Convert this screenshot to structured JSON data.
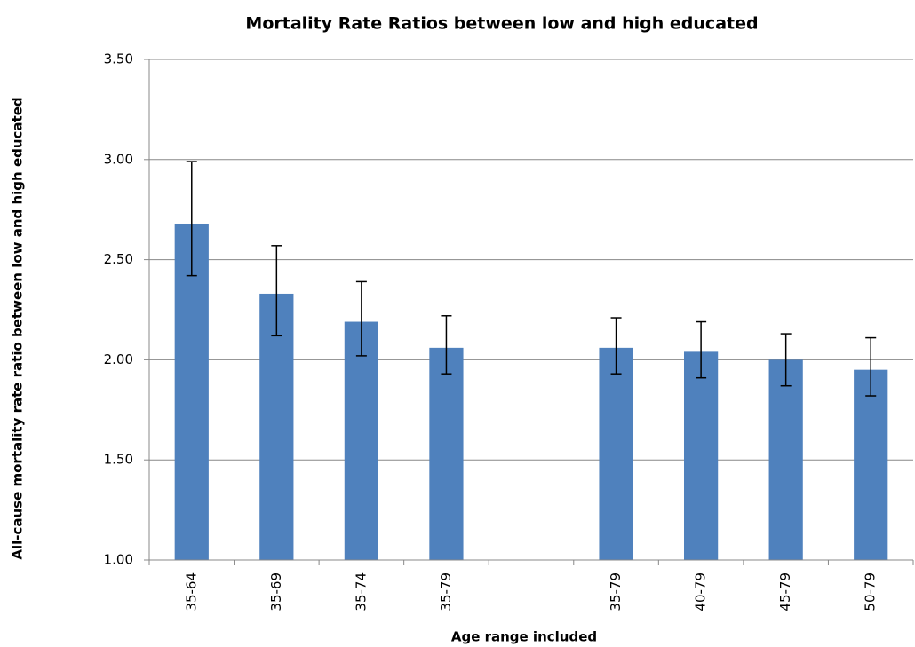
{
  "chart_data": {
    "type": "bar",
    "title": "Mortality Rate Ratios between low and high educated",
    "x_label": "Age range included",
    "y_label": "All-cause  mortality rate ratio between low and high educated",
    "categories": [
      "35-64",
      "35-69",
      "35-74",
      "35-79",
      null,
      "35-79",
      "40-79",
      "45-79",
      "50-79"
    ],
    "values": [
      2.68,
      2.33,
      2.19,
      2.06,
      null,
      2.06,
      2.04,
      2.0,
      1.95
    ],
    "error_lower": [
      2.42,
      2.12,
      2.02,
      1.93,
      null,
      1.93,
      1.91,
      1.87,
      1.82
    ],
    "error_upper": [
      2.99,
      2.57,
      2.39,
      2.22,
      null,
      2.21,
      2.19,
      2.13,
      2.11
    ],
    "color": "#4f81bd",
    "ylim": [
      1,
      3.5
    ],
    "yticks": [
      {
        "value": 1,
        "label": "1.00"
      },
      {
        "value": 1.5,
        "label": "1.50"
      },
      {
        "value": 2,
        "label": "2.00"
      },
      {
        "value": 2.5,
        "label": "2.50"
      },
      {
        "value": 3,
        "label": "3.00"
      },
      {
        "value": 3.5,
        "label": "3.50"
      }
    ],
    "grid": true
  }
}
